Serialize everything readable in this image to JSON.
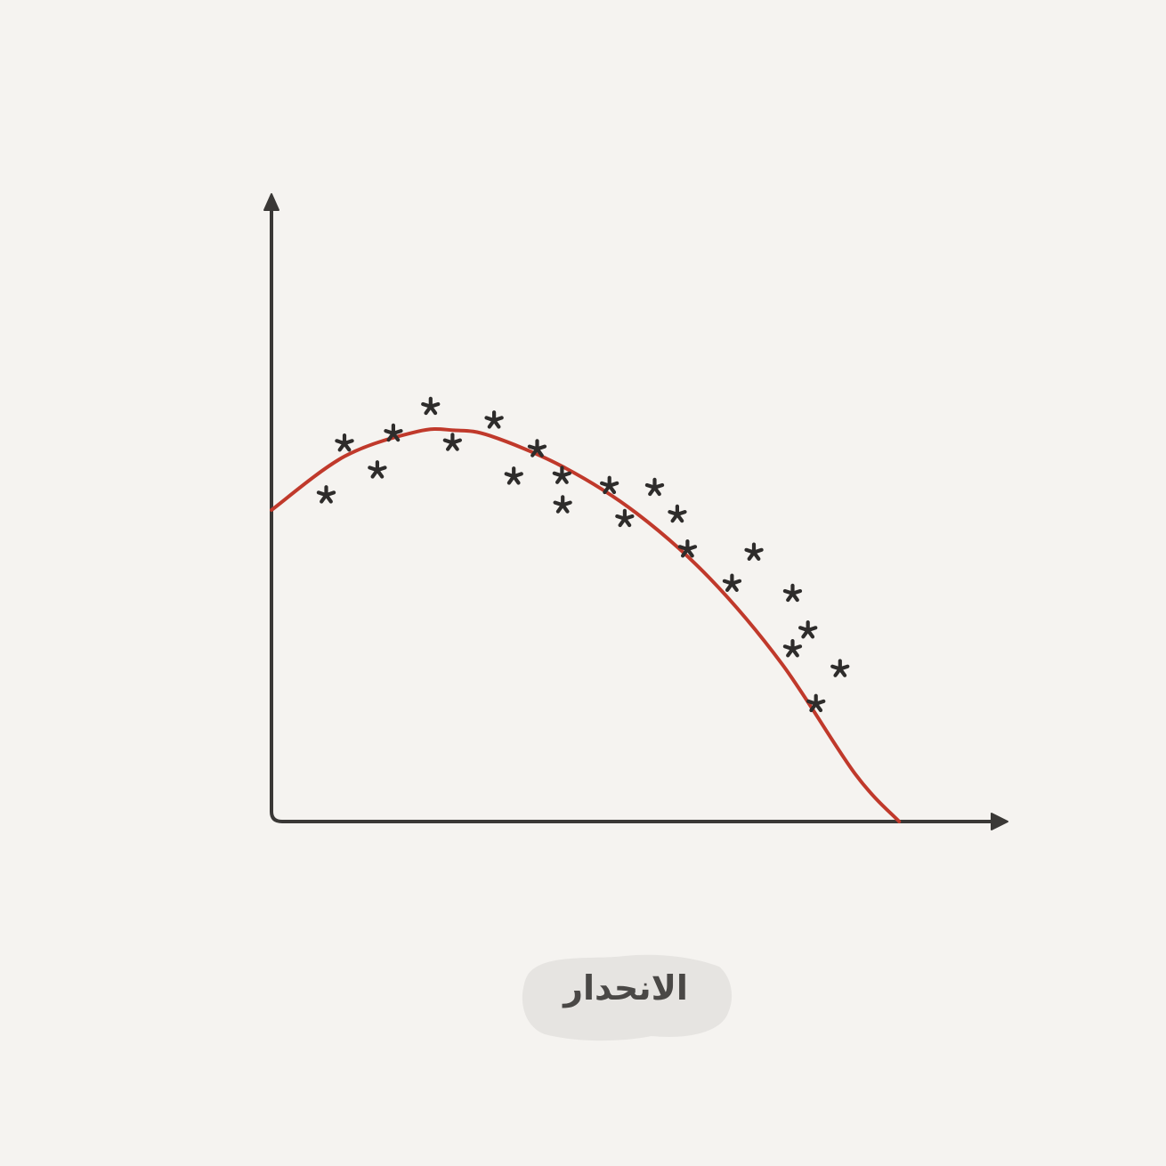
{
  "caption": "الانحدار",
  "chart_data": {
    "type": "scatter",
    "title": "",
    "xlabel": "",
    "ylabel": "",
    "xlim": [
      0,
      10
    ],
    "ylim": [
      0,
      10
    ],
    "grid": false,
    "legend": "none",
    "points": [
      {
        "x": 0.75,
        "y": 5.24
      },
      {
        "x": 1.0,
        "y": 6.07
      },
      {
        "x": 1.45,
        "y": 5.64
      },
      {
        "x": 1.67,
        "y": 6.23
      },
      {
        "x": 2.18,
        "y": 6.66
      },
      {
        "x": 2.48,
        "y": 6.08
      },
      {
        "x": 3.05,
        "y": 6.44
      },
      {
        "x": 3.32,
        "y": 5.54
      },
      {
        "x": 3.64,
        "y": 5.98
      },
      {
        "x": 3.98,
        "y": 5.55
      },
      {
        "x": 3.99,
        "y": 5.08
      },
      {
        "x": 4.63,
        "y": 5.39
      },
      {
        "x": 4.84,
        "y": 4.86
      },
      {
        "x": 5.25,
        "y": 5.36
      },
      {
        "x": 5.56,
        "y": 4.93
      },
      {
        "x": 5.7,
        "y": 4.37
      },
      {
        "x": 6.31,
        "y": 3.82
      },
      {
        "x": 6.61,
        "y": 4.32
      },
      {
        "x": 7.14,
        "y": 3.66
      },
      {
        "x": 7.35,
        "y": 3.07
      },
      {
        "x": 7.14,
        "y": 2.77
      },
      {
        "x": 7.46,
        "y": 1.89
      },
      {
        "x": 7.79,
        "y": 2.45
      }
    ],
    "fit": {
      "type": "polynomial",
      "x": [
        0.0,
        1.0,
        2.0,
        2.5,
        3.0,
        4.0,
        5.0,
        6.0,
        7.0,
        8.0,
        8.6
      ],
      "y": [
        5.0,
        5.86,
        6.26,
        6.28,
        6.19,
        5.69,
        4.95,
        3.91,
        2.52,
        0.76,
        0.0
      ]
    },
    "colors": {
      "points": "#2e2c2b",
      "fit": "#c0392b",
      "axes": "#3a3836",
      "caption_bg": "#e6e4e1"
    }
  }
}
